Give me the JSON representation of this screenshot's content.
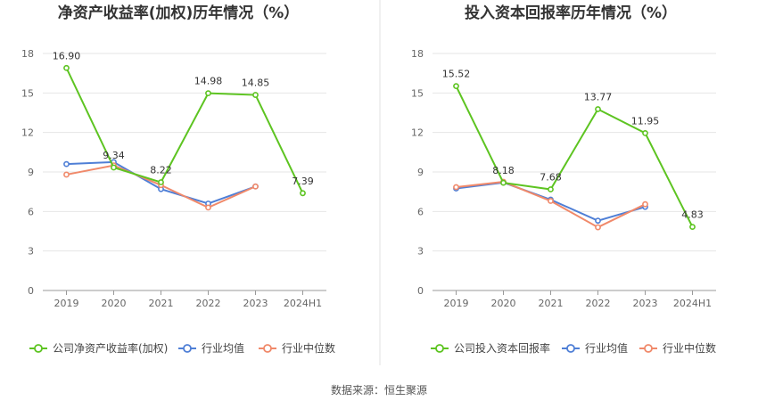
{
  "source": "数据来源：恒生聚源",
  "colors": {
    "company": "#5dc421",
    "industry_avg": "#4f7fd6",
    "industry_median": "#f0896a",
    "grid": "#e6e6e6",
    "axis": "#999999",
    "divider": "#e0e0e0"
  },
  "chart_data": [
    {
      "type": "line",
      "title": "净资产收益率(加权)历年情况（%）",
      "xlabel": "",
      "ylabel": "",
      "categories": [
        "2019",
        "2020",
        "2021",
        "2022",
        "2023",
        "2024H1"
      ],
      "yticks": [
        "0",
        "3",
        "6",
        "9",
        "12",
        "15",
        "18"
      ],
      "ylim": [
        0,
        18
      ],
      "grid": true,
      "legend_position": "bottom-left",
      "series": [
        {
          "name": "公司净资产收益率(加权)",
          "values": [
            16.9,
            9.34,
            8.22,
            14.98,
            14.85,
            7.39
          ],
          "labels": [
            "16.90",
            "9.34",
            "8.22",
            "14.98",
            "14.85",
            "7.39"
          ]
        },
        {
          "name": "行业均值",
          "values": [
            9.6,
            9.75,
            7.7,
            6.6,
            7.9,
            null
          ]
        },
        {
          "name": "行业中位数",
          "values": [
            8.8,
            9.5,
            8.0,
            6.3,
            7.9,
            null
          ]
        }
      ]
    },
    {
      "type": "line",
      "title": "投入资本回报率历年情况（%）",
      "xlabel": "",
      "ylabel": "",
      "categories": [
        "2019",
        "2020",
        "2021",
        "2022",
        "2023",
        "2024H1"
      ],
      "yticks": [
        "0",
        "3",
        "6",
        "9",
        "12",
        "15",
        "18"
      ],
      "ylim": [
        0,
        18
      ],
      "grid": true,
      "legend_position": "bottom-left",
      "series": [
        {
          "name": "公司投入资本回报率",
          "values": [
            15.52,
            8.18,
            7.68,
            13.77,
            11.95,
            4.83
          ],
          "labels": [
            "15.52",
            "8.18",
            "7.68",
            "13.77",
            "11.95",
            "4.83"
          ]
        },
        {
          "name": "行业均值",
          "values": [
            7.75,
            8.2,
            6.9,
            5.3,
            6.35,
            null
          ]
        },
        {
          "name": "行业中位数",
          "values": [
            7.85,
            8.25,
            6.8,
            4.8,
            6.55,
            null
          ]
        }
      ]
    }
  ]
}
